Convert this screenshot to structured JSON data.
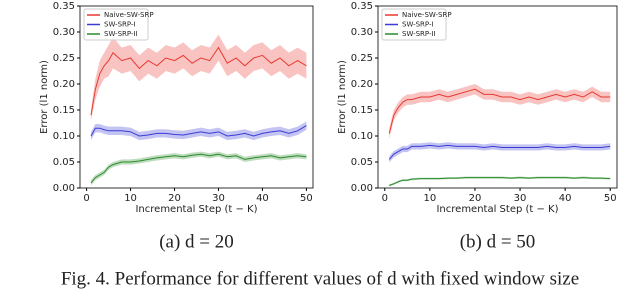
{
  "chart_data": [
    {
      "type": "line",
      "caption": "(a) d = 20",
      "xlabel": "Incremental Step (t − K)",
      "ylabel": "Error (l1 norm)",
      "x": [
        1,
        2,
        3,
        4,
        5,
        6,
        8,
        10,
        12,
        14,
        16,
        18,
        20,
        22,
        24,
        26,
        28,
        30,
        32,
        34,
        36,
        38,
        40,
        42,
        44,
        46,
        48,
        50
      ],
      "xlim": [
        -1.5,
        51.5
      ],
      "xticks": [
        0,
        10,
        20,
        30,
        40,
        50
      ],
      "ylim": [
        0,
        0.35
      ],
      "yticks": [
        {
          "value": 0,
          "label": "0.00"
        },
        0.05,
        {
          "value": 0.1,
          "label": "0.10"
        },
        0.15,
        {
          "value": 0.2,
          "label": "0.20"
        },
        0.25,
        {
          "value": 0.3,
          "label": "0.30"
        },
        0.35
      ],
      "legend": "upper left",
      "series": [
        {
          "name": "Naive-SW-SRP",
          "color": "#e8392f",
          "values": [
            0.14,
            0.19,
            0.22,
            0.235,
            0.245,
            0.26,
            0.245,
            0.25,
            0.23,
            0.245,
            0.235,
            0.25,
            0.245,
            0.255,
            0.24,
            0.25,
            0.245,
            0.27,
            0.24,
            0.25,
            0.235,
            0.25,
            0.255,
            0.24,
            0.25,
            0.235,
            0.245,
            0.235
          ],
          "errors": [
            0.01,
            0.02,
            0.025,
            0.025,
            0.03,
            0.03,
            0.025,
            0.025,
            0.025,
            0.025,
            0.025,
            0.025,
            0.025,
            0.025,
            0.025,
            0.025,
            0.025,
            0.025,
            0.025,
            0.025,
            0.025,
            0.025,
            0.025,
            0.025,
            0.025,
            0.025,
            0.025,
            0.025
          ]
        },
        {
          "name": "SW-SRP-I",
          "color": "#3b3bd6",
          "values": [
            0.1,
            0.115,
            0.115,
            0.112,
            0.11,
            0.11,
            0.11,
            0.108,
            0.1,
            0.102,
            0.105,
            0.105,
            0.103,
            0.102,
            0.105,
            0.108,
            0.105,
            0.108,
            0.1,
            0.102,
            0.105,
            0.1,
            0.105,
            0.108,
            0.11,
            0.105,
            0.11,
            0.12
          ],
          "errors": [
            0.008,
            0.008,
            0.008,
            0.008,
            0.008,
            0.008,
            0.008,
            0.008,
            0.008,
            0.008,
            0.008,
            0.008,
            0.008,
            0.008,
            0.008,
            0.008,
            0.008,
            0.008,
            0.008,
            0.008,
            0.008,
            0.008,
            0.008,
            0.008,
            0.008,
            0.008,
            0.008,
            0.008
          ]
        },
        {
          "name": "SW-SRP-II",
          "color": "#2a8a2a",
          "values": [
            0.01,
            0.02,
            0.025,
            0.03,
            0.04,
            0.045,
            0.05,
            0.05,
            0.052,
            0.055,
            0.058,
            0.06,
            0.062,
            0.06,
            0.063,
            0.065,
            0.062,
            0.065,
            0.06,
            0.062,
            0.055,
            0.058,
            0.06,
            0.062,
            0.058,
            0.06,
            0.062,
            0.06
          ],
          "errors": [
            0.005,
            0.005,
            0.005,
            0.005,
            0.005,
            0.005,
            0.005,
            0.005,
            0.005,
            0.005,
            0.005,
            0.005,
            0.005,
            0.005,
            0.005,
            0.005,
            0.005,
            0.005,
            0.005,
            0.005,
            0.005,
            0.005,
            0.005,
            0.005,
            0.005,
            0.005,
            0.005,
            0.005
          ]
        }
      ]
    },
    {
      "type": "line",
      "caption": "(b) d = 50",
      "xlabel": "Incremental Step (t − K)",
      "ylabel": "Error (l1 norm)",
      "x": [
        1,
        2,
        3,
        4,
        5,
        6,
        8,
        10,
        12,
        14,
        16,
        18,
        20,
        22,
        24,
        26,
        28,
        30,
        32,
        34,
        36,
        38,
        40,
        42,
        44,
        46,
        48,
        50
      ],
      "xlim": [
        -1.5,
        51.5
      ],
      "xticks": [
        0,
        10,
        20,
        30,
        40,
        50
      ],
      "ylim": [
        0,
        0.35
      ],
      "yticks": [
        {
          "value": 0,
          "label": "0.00"
        },
        0.05,
        {
          "value": 0.1,
          "label": "0.10"
        },
        0.15,
        {
          "value": 0.2,
          "label": "0.20"
        },
        0.25,
        {
          "value": 0.3,
          "label": "0.30"
        },
        0.35
      ],
      "legend": "upper left",
      "series": [
        {
          "name": "Naive-SW-SRP",
          "color": "#e8392f",
          "values": [
            0.105,
            0.14,
            0.155,
            0.165,
            0.17,
            0.17,
            0.175,
            0.175,
            0.18,
            0.175,
            0.18,
            0.185,
            0.19,
            0.18,
            0.18,
            0.175,
            0.175,
            0.17,
            0.175,
            0.17,
            0.175,
            0.18,
            0.175,
            0.18,
            0.175,
            0.185,
            0.175,
            0.175
          ],
          "errors": [
            0.01,
            0.01,
            0.01,
            0.01,
            0.01,
            0.01,
            0.01,
            0.01,
            0.01,
            0.01,
            0.01,
            0.01,
            0.01,
            0.01,
            0.01,
            0.01,
            0.01,
            0.01,
            0.01,
            0.01,
            0.01,
            0.01,
            0.01,
            0.01,
            0.01,
            0.01,
            0.01,
            0.01
          ]
        },
        {
          "name": "SW-SRP-I",
          "color": "#3b3bd6",
          "values": [
            0.055,
            0.065,
            0.07,
            0.075,
            0.075,
            0.08,
            0.08,
            0.082,
            0.08,
            0.082,
            0.08,
            0.08,
            0.08,
            0.078,
            0.08,
            0.078,
            0.078,
            0.078,
            0.078,
            0.078,
            0.08,
            0.078,
            0.078,
            0.08,
            0.078,
            0.078,
            0.078,
            0.08
          ],
          "errors": [
            0.006,
            0.006,
            0.006,
            0.006,
            0.006,
            0.006,
            0.006,
            0.006,
            0.006,
            0.006,
            0.006,
            0.006,
            0.006,
            0.006,
            0.006,
            0.006,
            0.006,
            0.006,
            0.006,
            0.006,
            0.006,
            0.006,
            0.006,
            0.006,
            0.006,
            0.006,
            0.006,
            0.006
          ]
        },
        {
          "name": "SW-SRP-II",
          "color": "#2a8a2a",
          "values": [
            0.005,
            0.008,
            0.012,
            0.015,
            0.015,
            0.017,
            0.018,
            0.018,
            0.018,
            0.019,
            0.019,
            0.02,
            0.02,
            0.02,
            0.02,
            0.02,
            0.019,
            0.02,
            0.019,
            0.02,
            0.02,
            0.02,
            0.02,
            0.019,
            0.02,
            0.019,
            0.019,
            0.018
          ],
          "errors": [
            0.002,
            0.002,
            0.002,
            0.002,
            0.002,
            0.002,
            0.002,
            0.002,
            0.002,
            0.002,
            0.002,
            0.002,
            0.002,
            0.002,
            0.002,
            0.002,
            0.002,
            0.002,
            0.002,
            0.002,
            0.002,
            0.002,
            0.002,
            0.002,
            0.002,
            0.002,
            0.002,
            0.002
          ]
        }
      ]
    }
  ],
  "figure_caption": "Fig. 4. Performance for different values of d with fixed window size"
}
